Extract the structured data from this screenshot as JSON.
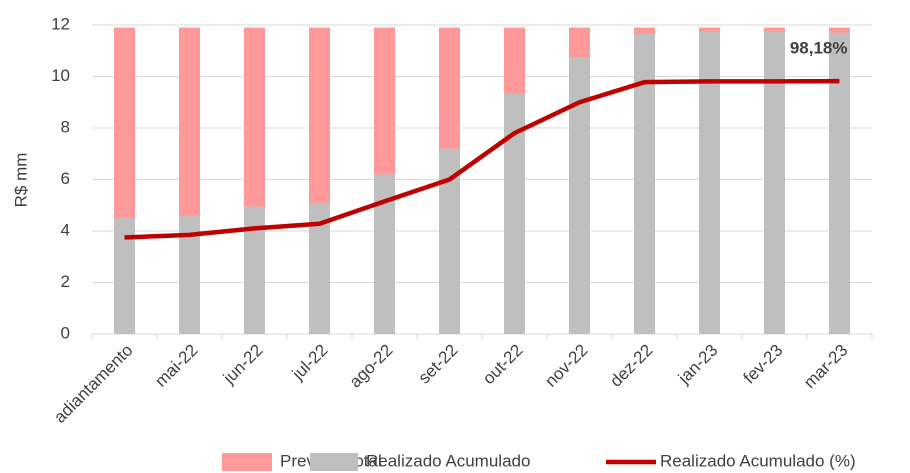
{
  "chart_data": {
    "type": "bar",
    "barmode": "overlay",
    "ylabel": "R$ mm",
    "categories": [
      "adiantamento",
      "mai-22",
      "jun-22",
      "jul-22",
      "ago-22",
      "set-22",
      "out-22",
      "nov-22",
      "dez-22",
      "jan-23",
      "fev-23",
      "mar-23"
    ],
    "ylim": [
      0,
      12
    ],
    "yticks": [
      0,
      2,
      4,
      6,
      8,
      10,
      12
    ],
    "y2lim": [
      0,
      120
    ],
    "grid": true,
    "legend": "bottom",
    "series": [
      {
        "name": "Previsto Total",
        "type": "bar",
        "color": "#ff9999",
        "values": [
          11.9,
          11.9,
          11.9,
          11.9,
          11.9,
          11.9,
          11.9,
          11.9,
          11.9,
          11.9,
          11.9,
          11.9
        ]
      },
      {
        "name": "Realizado Acumulado",
        "type": "bar",
        "color": "#bfbfbf",
        "values": [
          4.5,
          4.6,
          4.95,
          5.1,
          6.2,
          7.2,
          9.35,
          10.75,
          11.65,
          11.75,
          11.75,
          11.7
        ]
      },
      {
        "name": "Realizado Acumulado (%)",
        "type": "line",
        "axis": "y2",
        "color": "#c00000",
        "values": [
          37.5,
          38.5,
          41,
          42.8,
          51.5,
          60,
          78,
          90,
          97.8,
          98.1,
          98.1,
          98.18
        ],
        "value_labels": [
          null,
          null,
          null,
          null,
          null,
          null,
          null,
          null,
          null,
          null,
          null,
          "98,18%"
        ]
      }
    ]
  }
}
